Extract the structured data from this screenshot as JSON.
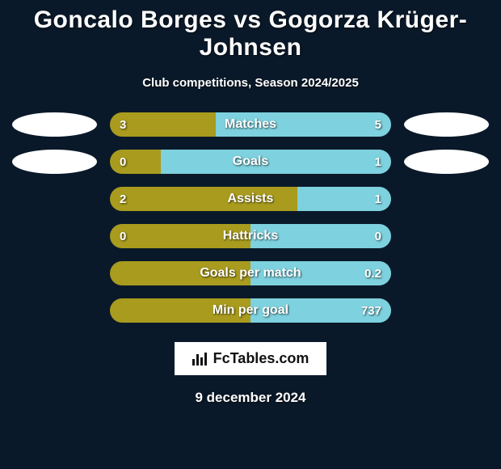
{
  "background_color": "#0a1929",
  "title": "Goncalo Borges vs Gogorza Krüger-Johnsen",
  "subtitle": "Club competitions, Season 2024/2025",
  "colors": {
    "left_fill": "#a89b1e",
    "right_fill": "#7ed1de",
    "badge": "#ffffff"
  },
  "show_badges_on_rows": [
    0,
    1
  ],
  "rows": [
    {
      "label": "Matches",
      "left_val": "3",
      "right_val": "5",
      "left_pct": 37.5,
      "right_pct": 62.5
    },
    {
      "label": "Goals",
      "left_val": "0",
      "right_val": "1",
      "left_pct": 18,
      "right_pct": 82
    },
    {
      "label": "Assists",
      "left_val": "2",
      "right_val": "1",
      "left_pct": 66.7,
      "right_pct": 33.3
    },
    {
      "label": "Hattricks",
      "left_val": "0",
      "right_val": "0",
      "left_pct": 50,
      "right_pct": 50
    },
    {
      "label": "Goals per match",
      "left_val": "",
      "right_val": "0.2",
      "left_pct": 50,
      "right_pct": 50
    },
    {
      "label": "Min per goal",
      "left_val": "",
      "right_val": "737",
      "left_pct": 50,
      "right_pct": 50
    }
  ],
  "logo_text": "FcTables.com",
  "date_text": "9 december 2024"
}
